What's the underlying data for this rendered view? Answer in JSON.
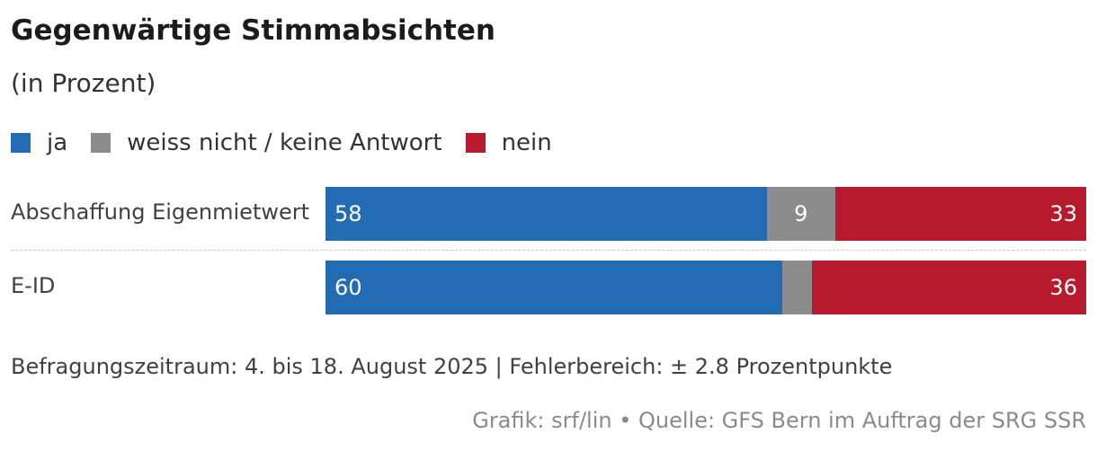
{
  "header": {
    "title": "Gegenwärtige Stimmabsichten",
    "subtitle": "(in Prozent)"
  },
  "legend": [
    {
      "label": "ja",
      "color": "#236cb4"
    },
    {
      "label": "weiss nicht / keine Antwort",
      "color": "#8c8c8c"
    },
    {
      "label": "nein",
      "color": "#b81a2d"
    }
  ],
  "chart_data": {
    "type": "bar",
    "orientation": "horizontal",
    "stacked": true,
    "title": "Gegenwärtige Stimmabsichten",
    "subtitle": "(in Prozent)",
    "categories": [
      "Abschaffung Eigenmietwert",
      "E-ID"
    ],
    "series": [
      {
        "name": "ja",
        "values": [
          58,
          60
        ],
        "value_labels": [
          "58",
          "60"
        ]
      },
      {
        "name": "weiss nicht / keine Antwort",
        "values": [
          9,
          4
        ],
        "value_labels": [
          "9",
          ""
        ]
      },
      {
        "name": "nein",
        "values": [
          33,
          36
        ],
        "value_labels": [
          "33",
          "36"
        ]
      }
    ],
    "xlim": [
      0,
      100
    ],
    "legend_position": "top-left",
    "grid": false
  },
  "footer": {
    "note": "Befragungszeitraum: 4. bis 18. August 2025 | Fehlerbereich: ± 2.8 Prozentpunkte",
    "source": "Grafik: srf/lin • Quelle: GFS Bern im Auftrag der SRG SSR"
  }
}
